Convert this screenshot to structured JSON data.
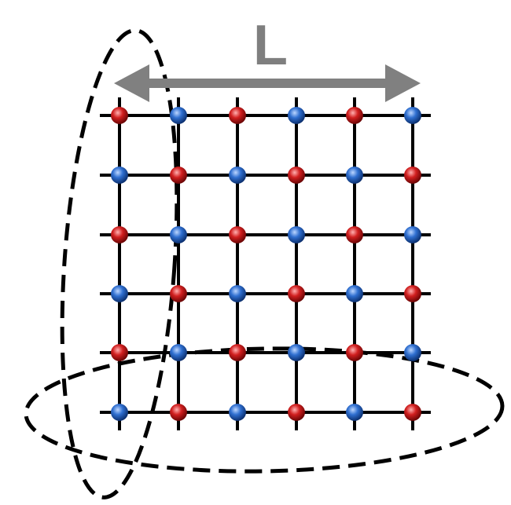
{
  "diagram": {
    "length_label": "L",
    "colors": {
      "arrow": "#808080",
      "grid_line": "#000000",
      "site_red": "#d11f1f",
      "site_blue": "#2f6fd0",
      "loop": "#000000"
    },
    "lattice": {
      "rows": 6,
      "cols": 6,
      "pattern": [
        [
          "red",
          "blue",
          "red",
          "blue",
          "red",
          "blue"
        ],
        [
          "blue",
          "red",
          "blue",
          "red",
          "blue",
          "red"
        ],
        [
          "red",
          "blue",
          "red",
          "blue",
          "red",
          "blue"
        ],
        [
          "blue",
          "red",
          "blue",
          "red",
          "blue",
          "red"
        ],
        [
          "red",
          "blue",
          "red",
          "blue",
          "red",
          "blue"
        ],
        [
          "blue",
          "red",
          "blue",
          "red",
          "blue",
          "red"
        ]
      ]
    },
    "icons": {
      "arrow": "double-arrow-icon",
      "vertical_loop": "dashed-ellipse-vertical",
      "horizontal_loop": "dashed-ellipse-horizontal"
    }
  }
}
